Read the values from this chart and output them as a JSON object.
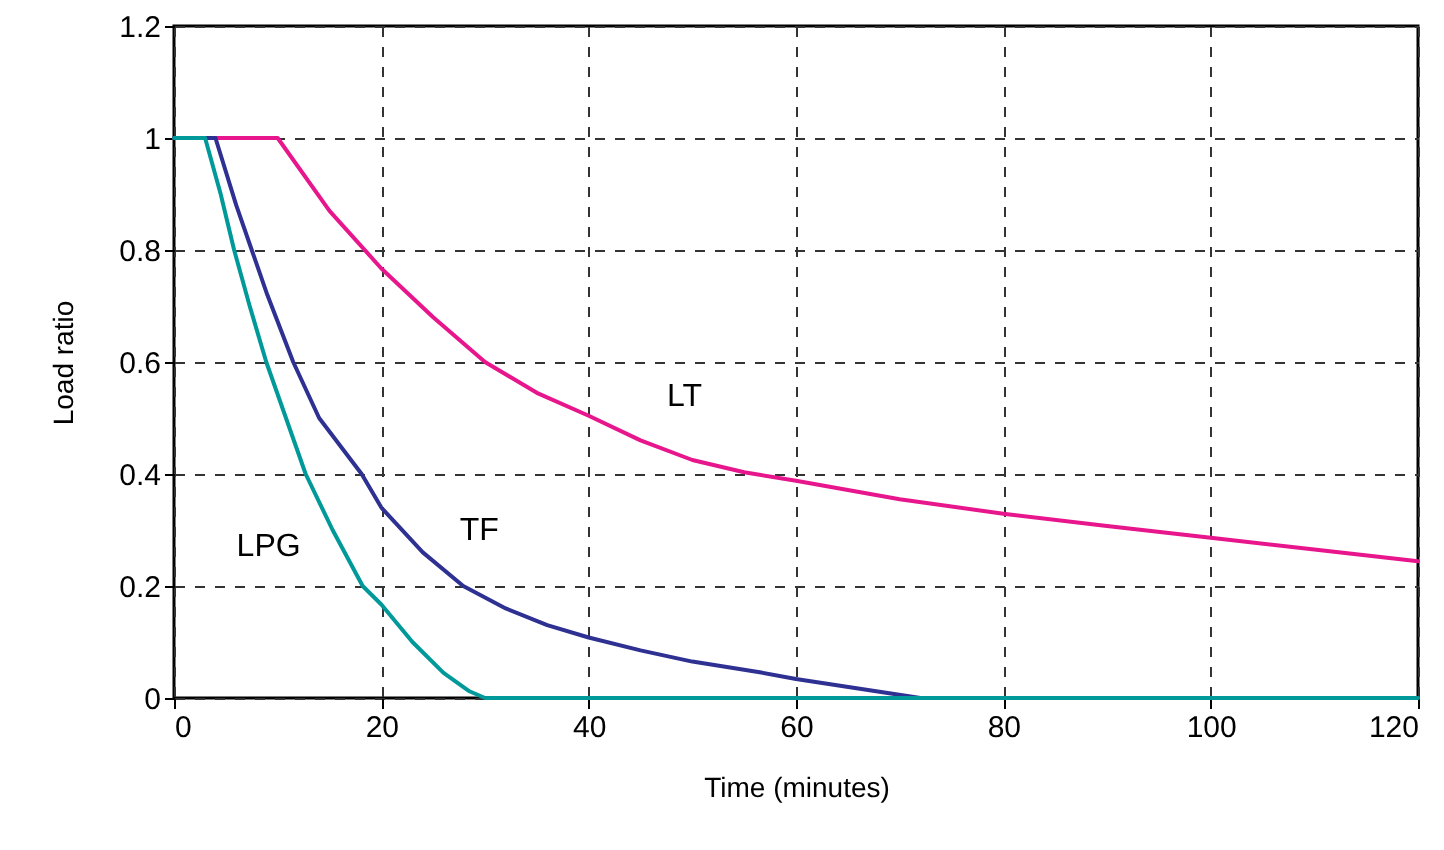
{
  "chart_data": {
    "type": "line",
    "xlabel": "Time (minutes)",
    "ylabel": "Load ratio",
    "xlim": [
      0,
      120
    ],
    "xticks": [
      0,
      20,
      40,
      60,
      80,
      100,
      120
    ],
    "ylim": [
      0,
      1.2
    ],
    "yticks": [
      0,
      0.2,
      0.4,
      0.6,
      0.8,
      1,
      1.2
    ],
    "grid": true,
    "line_style": "solid",
    "series": [
      {
        "name": "LT",
        "color": "#e8168c",
        "x": [
          0,
          10,
          15,
          20,
          25,
          30,
          35,
          40,
          45,
          50,
          55,
          60,
          70,
          80,
          90,
          100,
          110,
          120
        ],
        "values": [
          1,
          1,
          0.87,
          0.767,
          0.68,
          0.6,
          0.545,
          0.504,
          0.46,
          0.425,
          0.403,
          0.388,
          0.355,
          0.329,
          0.307,
          0.286,
          0.265,
          0.244
        ]
      },
      {
        "name": "TF",
        "color": "#2e3192",
        "x": [
          0,
          4,
          6,
          7.5,
          9,
          11.5,
          14,
          18.1,
          20,
          24,
          27.9,
          32,
          36,
          40,
          45,
          50,
          56.5,
          60,
          66,
          72,
          120
        ],
        "values": [
          1,
          1,
          0.88,
          0.8,
          0.72,
          0.6,
          0.5,
          0.4,
          0.34,
          0.26,
          0.2,
          0.16,
          0.13,
          0.108,
          0.085,
          0.065,
          0.046,
          0.034,
          0.017,
          0,
          0
        ]
      },
      {
        "name": "LPG",
        "color": "#00999a",
        "x": [
          0,
          3,
          4.5,
          5.8,
          7.3,
          8.9,
          10.8,
          12.7,
          15.3,
          18.2,
          20,
          23,
          26,
          28.5,
          30,
          120
        ],
        "values": [
          1,
          1,
          0.9,
          0.8,
          0.7,
          0.6,
          0.5,
          0.4,
          0.3,
          0.2,
          0.167,
          0.1,
          0.045,
          0.012,
          0,
          0
        ]
      }
    ],
    "legend": false
  }
}
